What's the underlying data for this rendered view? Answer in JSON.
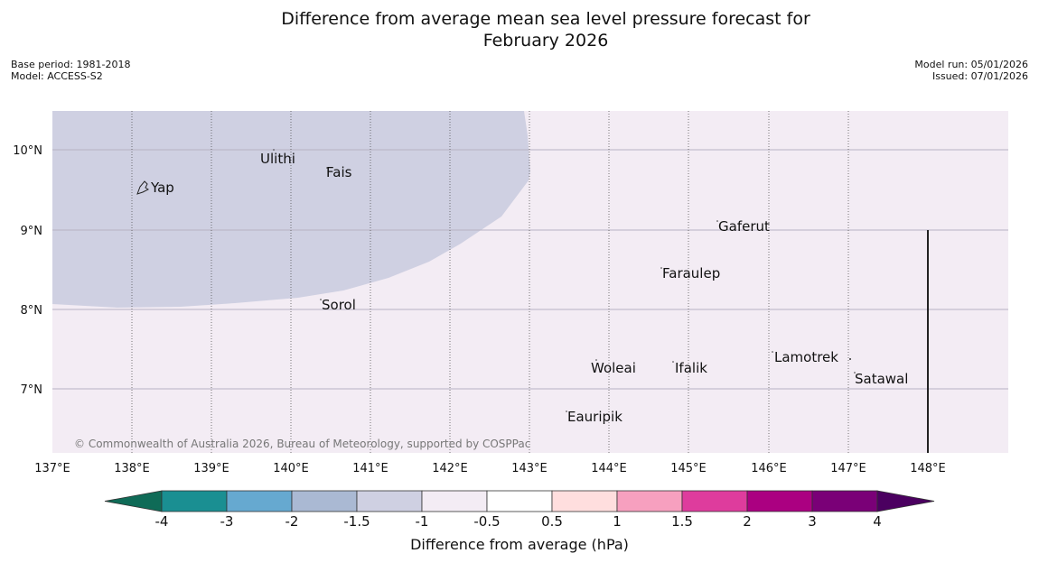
{
  "title_line1": "Difference from average mean sea level pressure forecast for",
  "title_line2": "February 2026",
  "meta": {
    "base_period": "Base period: 1981-2018",
    "model": "Model: ACCESS-S2",
    "model_run": "Model run: 05/01/2026",
    "issued": "Issued: 07/01/2026"
  },
  "map": {
    "lat_labels": [
      "10°N",
      "9°N",
      "8°N",
      "7°N"
    ],
    "lon_labels": [
      "137°E",
      "138°E",
      "139°E",
      "140°E",
      "141°E",
      "142°E",
      "143°E",
      "144°E",
      "145°E",
      "146°E",
      "147°E",
      "148°E"
    ],
    "places": [
      "Ulithi",
      "Fais",
      "Yap",
      "Gaferut",
      "Faraulep",
      "Sorol",
      "Lamotrek",
      "Woleai",
      "Ifalik",
      "Satawal",
      "Eauripik"
    ],
    "copyright": "© Commonwealth of Australia 2026, Bureau of Meteorology, supported by COSPPac",
    "background_color": "#f3ecf4",
    "anomaly_color": "#cfd0e2"
  },
  "colorbar": {
    "ticks": [
      "-4",
      "-3",
      "-2",
      "-1.5",
      "-1",
      "-0.5",
      "0.5",
      "1",
      "1.5",
      "2",
      "3",
      "4"
    ],
    "colors": [
      "#1a8f92",
      "#66a9d0",
      "#aab9d3",
      "#cfd0e2",
      "#f3ecf4",
      "#ffffff",
      "#ffdede",
      "#f7a0bf",
      "#de3c9d",
      "#ab0081",
      "#7a0077"
    ],
    "low_color": "#0f6b57",
    "high_color": "#4b0060",
    "label": "Difference from average (hPa)"
  }
}
